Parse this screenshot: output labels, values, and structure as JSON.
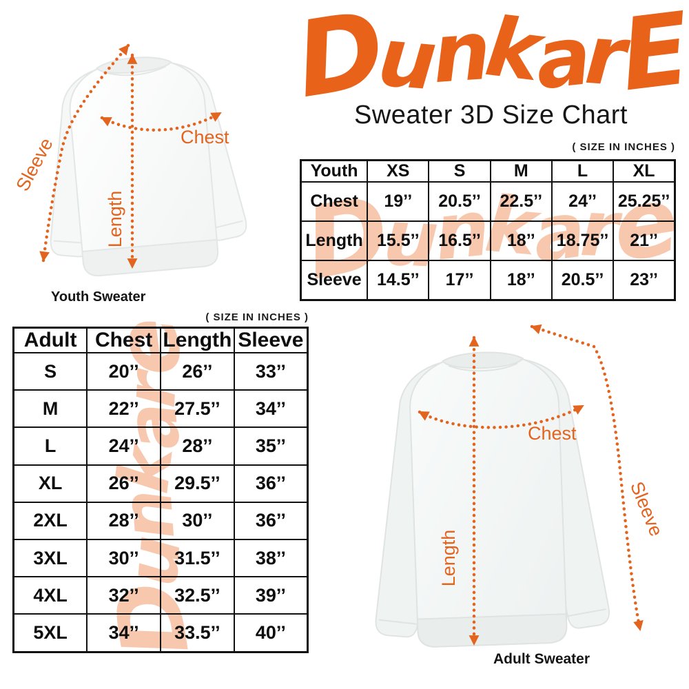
{
  "header": {
    "logo_text": "DunkarE",
    "title": "Sweater 3D Size Chart"
  },
  "size_note": "( SIZE IN INCHES )",
  "watermark_text": "Dunkare",
  "youth": {
    "caption": "Youth Sweater",
    "labels": {
      "chest": "Chest",
      "length": "Length",
      "sleeve": "Sleeve"
    },
    "table": {
      "header": [
        "Youth",
        "XS",
        "S",
        "M",
        "L",
        "XL"
      ],
      "rows": [
        [
          "Chest",
          "19’’",
          "20.5’’",
          "22.5’’",
          "24’’",
          "25.25’’"
        ],
        [
          "Length",
          "15.5’’",
          "16.5’’",
          "18’’",
          "18.75’’",
          "21’’"
        ],
        [
          "Sleeve",
          "14.5’’",
          "17’’",
          "18’’",
          "20.5’’",
          "23’’"
        ]
      ]
    }
  },
  "adult": {
    "caption": "Adult Sweater",
    "labels": {
      "chest": "Chest",
      "length": "Length",
      "sleeve": "Sleeve"
    },
    "table": {
      "header": [
        "Adult",
        "Chest",
        "Length",
        "Sleeve"
      ],
      "rows": [
        [
          "S",
          "20’’",
          "26’’",
          "33’’"
        ],
        [
          "M",
          "22’’",
          "27.5’’",
          "34’’"
        ],
        [
          "L",
          "24’’",
          "28’’",
          "35’’"
        ],
        [
          "XL",
          "26’’",
          "29.5’’",
          "36’’"
        ],
        [
          "2XL",
          "28’’",
          "30’’",
          "36’’"
        ],
        [
          "3XL",
          "30’’",
          "31.5’’",
          "38’’"
        ],
        [
          "4XL",
          "32’’",
          "32.5’’",
          "39’’"
        ],
        [
          "5XL",
          "34’’",
          "33.5’’",
          "40’’"
        ]
      ]
    }
  },
  "colors": {
    "brand_orange": "#E8621A",
    "arrow_orange": "#E2641E",
    "watermark_peach": "#F7C8AE",
    "text_black": "#141414"
  }
}
